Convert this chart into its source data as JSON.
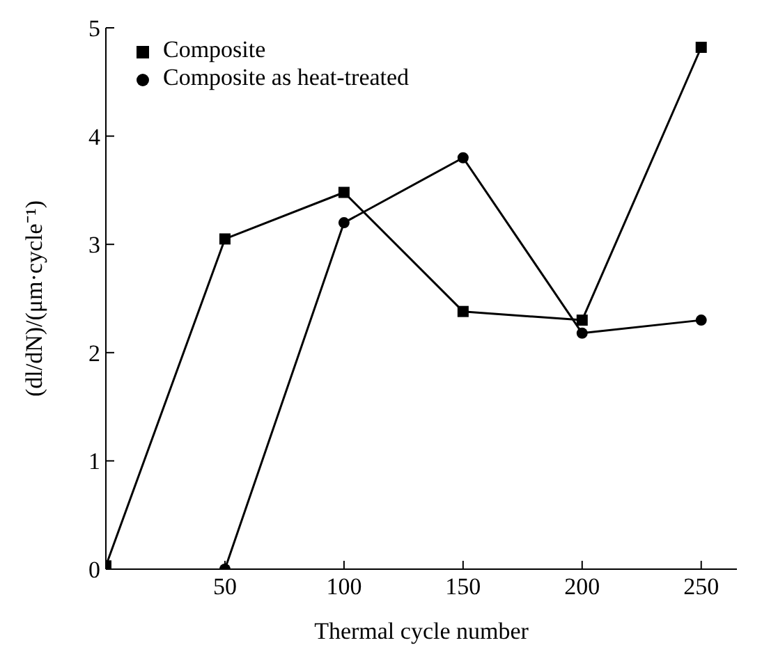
{
  "chart_data": {
    "type": "line",
    "xlabel": "Thermal cycle number",
    "ylabel": "(dl/dN)/(μm·cycle⁻¹)",
    "xlim": [
      0,
      265
    ],
    "xticks": [
      50,
      100,
      150,
      200,
      250
    ],
    "ylim": [
      0,
      5
    ],
    "yticks": [
      0,
      1,
      2,
      3,
      4,
      5
    ],
    "grid": false,
    "legend": "top left",
    "line_style": "solid",
    "series": [
      {
        "name": "Composite as heat-treated",
        "color": "#000000",
        "marker": "circle",
        "x": [
          50,
          100,
          150,
          200,
          250
        ],
        "values": [
          0,
          3.2,
          3.8,
          2.18,
          2.3
        ]
      },
      {
        "name": "Composite",
        "color": "#000000",
        "marker": "square",
        "x": [
          0,
          50,
          100,
          150,
          200,
          250
        ],
        "values": [
          0.03,
          3.05,
          3.48,
          2.38,
          2.3,
          4.82
        ]
      }
    ]
  }
}
